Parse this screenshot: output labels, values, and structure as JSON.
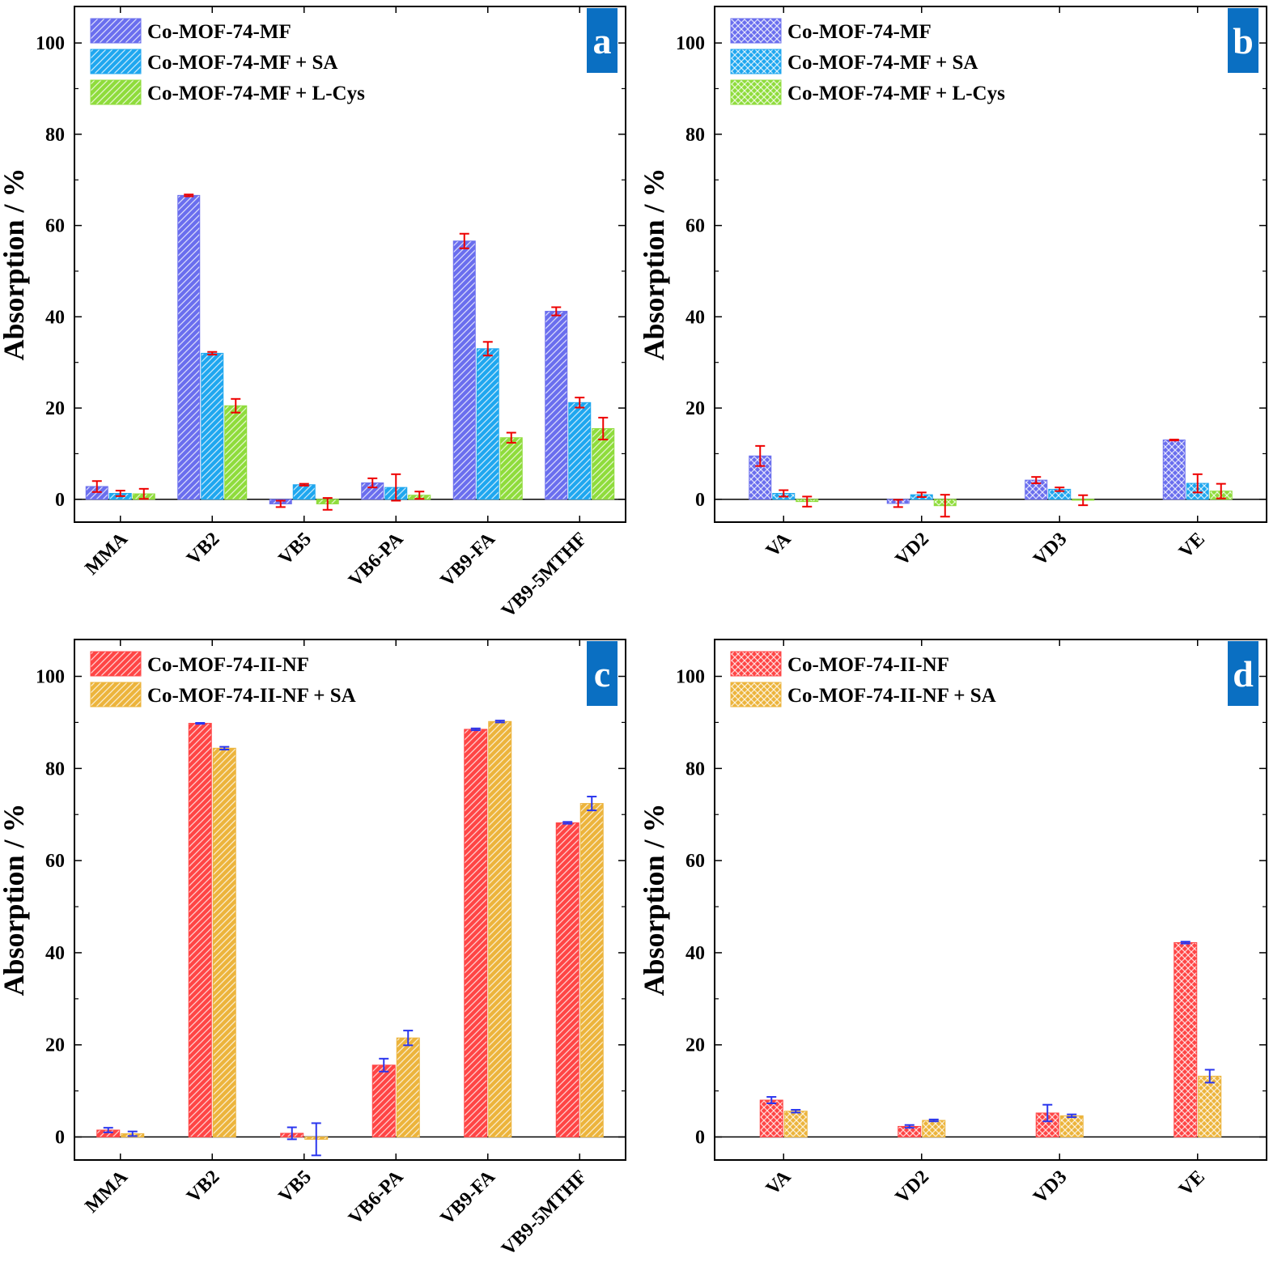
{
  "colors": {
    "blue_purple": "#6a6eee",
    "cyan": "#1fa7ef",
    "green": "#8fdc3c",
    "red": "#ff4545",
    "orange": "#ecb43c",
    "err_red": "#ee0000",
    "err_blue": "#2a36ee",
    "badge": "#0a6fc2"
  },
  "chart_data": [
    {
      "panel": "a",
      "type": "bar",
      "pattern": "hatch",
      "ylabel": "Absorption / %",
      "ylim": [
        -5,
        108
      ],
      "yticks": [
        "0",
        "20",
        "40",
        "60",
        "80",
        "100"
      ],
      "categories": [
        "MMA",
        "VB2",
        "VB5",
        "VB6-PA",
        "VB9-FA",
        "VB9-5MTHF"
      ],
      "error_color": "err_red",
      "legend_position": "top-left",
      "series": [
        {
          "name": "Co-MOF-74-MF",
          "color": "blue_purple",
          "values": [
            2.8,
            66.6,
            -1.0,
            3.6,
            56.6,
            41.2
          ],
          "errors": [
            1.2,
            0.2,
            0.7,
            1.0,
            1.6,
            0.9
          ]
        },
        {
          "name": "Co-MOF-74-MF + SA",
          "color": "cyan",
          "values": [
            1.3,
            32.0,
            3.2,
            2.6,
            33.0,
            21.2
          ],
          "errors": [
            0.6,
            0.3,
            0.2,
            2.9,
            1.5,
            1.1
          ]
        },
        {
          "name": "Co-MOF-74-MF + L-Cys",
          "color": "green",
          "values": [
            1.2,
            20.5,
            -1.0,
            0.9,
            13.5,
            15.5
          ],
          "errors": [
            1.1,
            1.5,
            1.3,
            0.8,
            1.1,
            2.4
          ]
        }
      ]
    },
    {
      "panel": "b",
      "type": "bar",
      "pattern": "crosshatch",
      "ylabel": "Absorption / %",
      "ylim": [
        -5,
        108
      ],
      "yticks": [
        "0",
        "20",
        "40",
        "60",
        "80",
        "100"
      ],
      "categories": [
        "VA",
        "VD2",
        "VD3",
        "VE"
      ],
      "error_color": "err_red",
      "legend_position": "top-left",
      "series": [
        {
          "name": "Co-MOF-74-MF",
          "color": "blue_purple",
          "values": [
            9.5,
            -0.9,
            4.2,
            13.0
          ],
          "errors": [
            2.2,
            0.8,
            0.7,
            0.1
          ]
        },
        {
          "name": "Co-MOF-74-MF + SA",
          "color": "cyan",
          "values": [
            1.3,
            1.0,
            2.2,
            3.5
          ],
          "errors": [
            0.7,
            0.5,
            0.4,
            2.0
          ]
        },
        {
          "name": "Co-MOF-74-MF + L-Cys",
          "color": "green",
          "values": [
            -0.5,
            -1.4,
            -0.2,
            1.8
          ],
          "errors": [
            1.1,
            2.4,
            1.1,
            1.6
          ]
        }
      ]
    },
    {
      "panel": "c",
      "type": "bar",
      "pattern": "hatch",
      "ylabel": "Absorption / %",
      "ylim": [
        -5,
        108
      ],
      "yticks": [
        "0",
        "20",
        "40",
        "60",
        "80",
        "100"
      ],
      "categories": [
        "MMA",
        "VB2",
        "VB5",
        "VB6-PA",
        "VB9-FA",
        "VB9-5MTHF"
      ],
      "error_color": "err_blue",
      "legend_position": "top-left",
      "series": [
        {
          "name": "Co-MOF-74-II-NF",
          "color": "red",
          "values": [
            1.5,
            89.8,
            0.8,
            15.6,
            88.5,
            68.2
          ],
          "errors": [
            0.5,
            0.1,
            1.3,
            1.4,
            0.2,
            0.2
          ]
        },
        {
          "name": "Co-MOF-74-II-NF + SA",
          "color": "orange",
          "values": [
            0.7,
            84.4,
            -0.5,
            21.5,
            90.2,
            72.4
          ],
          "errors": [
            0.5,
            0.3,
            3.5,
            1.6,
            0.2,
            1.5
          ]
        }
      ]
    },
    {
      "panel": "d",
      "type": "bar",
      "pattern": "crosshatch",
      "ylabel": "Absorption / %",
      "ylim": [
        -5,
        108
      ],
      "yticks": [
        "0",
        "20",
        "40",
        "60",
        "80",
        "100"
      ],
      "categories": [
        "VA",
        "VD2",
        "VD3",
        "VE"
      ],
      "error_color": "err_blue",
      "legend_position": "top-left",
      "series": [
        {
          "name": "Co-MOF-74-II-NF",
          "color": "red",
          "values": [
            8.0,
            2.3,
            5.2,
            42.2
          ],
          "errors": [
            0.7,
            0.3,
            1.8,
            0.2
          ]
        },
        {
          "name": "Co-MOF-74-II-NF + SA",
          "color": "orange",
          "values": [
            5.6,
            3.6,
            4.6,
            13.2
          ],
          "errors": [
            0.3,
            0.2,
            0.3,
            1.4
          ]
        }
      ]
    }
  ]
}
